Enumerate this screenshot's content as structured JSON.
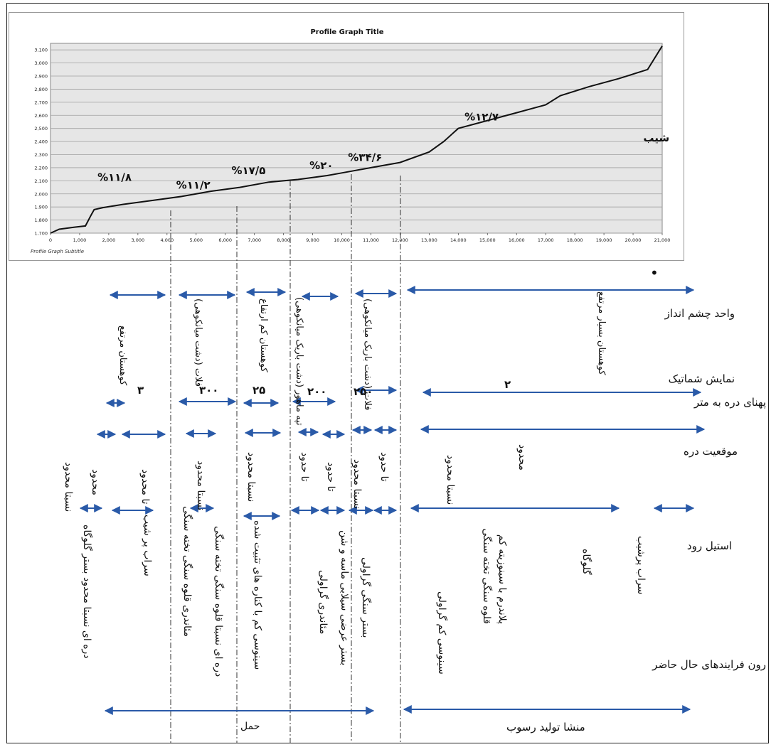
{
  "chart_data": {
    "type": "line",
    "title": "Profile Graph Title",
    "subtitle": "Profile Graph Subtitle",
    "xlabel": "",
    "ylabel": "",
    "xlim": [
      0,
      21000
    ],
    "ylim": [
      1700,
      3150
    ],
    "x_ticks": [
      "0",
      "1,000",
      "2,000",
      "3,000",
      "4,000",
      "5,000",
      "6,000",
      "7,000",
      "8,000",
      "9,000",
      "10,000",
      "11,000",
      "12,000",
      "13,000",
      "14,000",
      "15,000",
      "16,000",
      "17,000",
      "18,000",
      "19,000",
      "20,000",
      "21,000"
    ],
    "y_ticks": [
      "1,700",
      "1,800",
      "1,900",
      "2,000",
      "2,100",
      "2,200",
      "2,300",
      "2,400",
      "2,500",
      "2,600",
      "2,700",
      "2,800",
      "2,900",
      "3,000",
      "3,100"
    ],
    "grid": true,
    "legend": "none",
    "series": [
      {
        "color": "#111111",
        "x": [
          0,
          300,
          800,
          1200,
          1400,
          1500,
          1800,
          2500,
          3500,
          4500,
          5500,
          6500,
          7500,
          8500,
          9500,
          10000,
          11000,
          12000,
          13000,
          13500,
          14000,
          15000,
          16000,
          17000,
          17500,
          18500,
          19500,
          20500,
          21000
        ],
        "y": [
          1700,
          1730,
          1745,
          1755,
          1840,
          1880,
          1895,
          1920,
          1950,
          1980,
          2020,
          2050,
          2090,
          2110,
          2140,
          2160,
          2200,
          2240,
          2320,
          2400,
          2500,
          2560,
          2620,
          2680,
          2750,
          2820,
          2880,
          2950,
          3130
        ]
      }
    ],
    "annotations": [
      {
        "text": "%۱۱/۸",
        "x": 2200,
        "y": 2100
      },
      {
        "text": "%۱۱/۲",
        "x": 4900,
        "y": 2040
      },
      {
        "text": "%۱۷/۵",
        "x": 6800,
        "y": 2150
      },
      {
        "text": "%۲۰",
        "x": 9300,
        "y": 2190
      },
      {
        "text": "%۳۴/۶",
        "x": 10800,
        "y": 2250
      },
      {
        "text": "%۱۲/۷",
        "x": 14800,
        "y": 2560
      },
      {
        "text": "شیب",
        "x": 20800,
        "y": 2400
      }
    ]
  },
  "rows": {
    "landscape": "واحد چشم انداز",
    "schematic": "نمایش شماتیک",
    "width": "پهنای دره به متر",
    "position": "موقعیت دره",
    "style": "استیل رود",
    "processes": "رون فرایندهای حال حاضر"
  },
  "landscape_units": [
    "کوهستان مرتفع",
    "فلات (دشت میانکوهی)",
    "کوهستان کم ارتفاع",
    "تپه ماهور (دشت باریک میانکوهی)",
    "فلات (دشت باریک میانکوهی)",
    "کوهستان بسیار مرتفع"
  ],
  "widths": [
    "۳",
    "۳۰۰",
    "۲۵",
    "۲۰۰",
    "۲۵۰",
    "۲"
  ],
  "positions": [
    "نسبتا محدود",
    "محدود",
    "تا محدود",
    "نسبتا محدود",
    "نسبتا محدود",
    "تا حدود",
    "تا حدود",
    "نسبتا محدود",
    "تا حدود",
    "نسبتا محدود",
    "محدود"
  ],
  "styles": [
    "دره ای نسبتا محدود بستر گلوگاه",
    "سراب پر شیب",
    "مئاندری قلوه سنگی تخته سنگی",
    "دره ای نسبتا قلوه سنگی تخته سنگی",
    "سینوسی کم با کناره های تثبیت شده",
    "مئاندری گراولی",
    "بستر عرضی سیلابی ماسه و شن",
    "بستر سنگی گراولی",
    "سینوسی کم گراولی",
    "پلاندرم با سینوزیته کم قلوه سنگی تخته سنگی",
    "گلوگاه",
    "سراب پرشیب"
  ],
  "process_labels": {
    "transport": "حمل",
    "source": "منشا تولید رسوب"
  },
  "dot": "•"
}
